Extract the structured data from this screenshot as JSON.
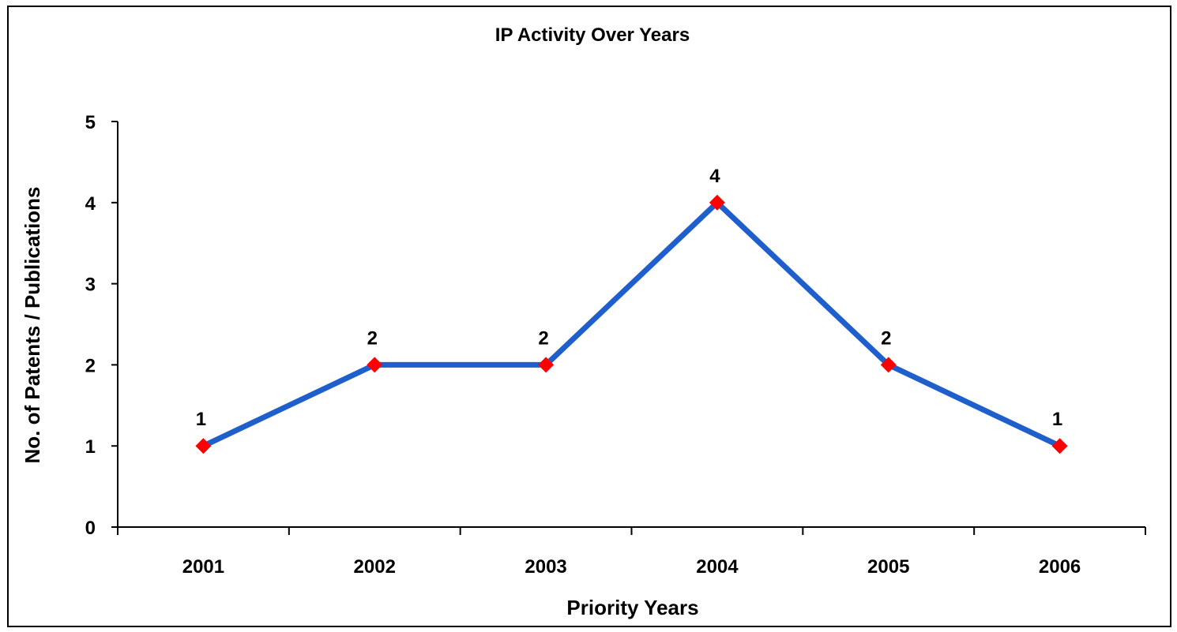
{
  "chart_data": {
    "type": "line",
    "title": "IP Activity Over Years",
    "xlabel": "Priority Years",
    "ylabel": "No. of Patents / Publications",
    "categories": [
      "2001",
      "2002",
      "2003",
      "2004",
      "2005",
      "2006"
    ],
    "series": [
      {
        "values": [
          1,
          2,
          2,
          4,
          2,
          1
        ],
        "line_color": "#1f5fcc",
        "marker_color": "#ff0000",
        "marker": "diamond"
      }
    ],
    "data_labels": [
      "1",
      "2",
      "2",
      "4",
      "2",
      "1"
    ],
    "ylim": [
      0,
      5
    ],
    "yticks": [
      "0",
      "1",
      "2",
      "3",
      "4",
      "5"
    ],
    "grid": false,
    "legend": "none"
  }
}
